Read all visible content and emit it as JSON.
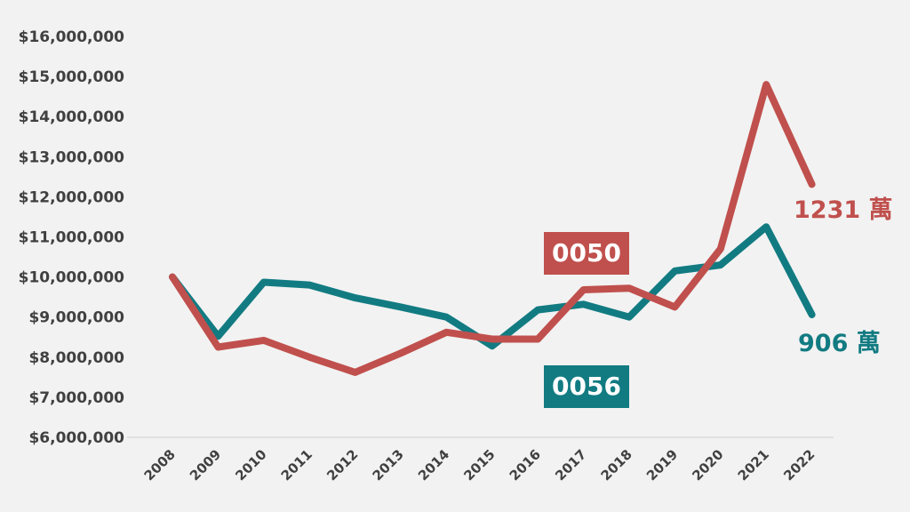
{
  "colors": {
    "0050": "#c0504d",
    "0056": "#127b82",
    "grid": "#d9d9d9",
    "text": "#404040"
  },
  "chart_data": {
    "type": "line",
    "x": [
      "2008",
      "2009",
      "2010",
      "2011",
      "2012",
      "2013",
      "2014",
      "2015",
      "2016",
      "2017",
      "2018",
      "2019",
      "2020",
      "2021",
      "2022"
    ],
    "ylim": [
      6000000,
      16000000
    ],
    "yticks": [
      {
        "value": 16000000,
        "label": "$16,000,000"
      },
      {
        "value": 15000000,
        "label": "$15,000,000"
      },
      {
        "value": 14000000,
        "label": "$14,000,000"
      },
      {
        "value": 13000000,
        "label": "$13,000,000"
      },
      {
        "value": 12000000,
        "label": "$12,000,000"
      },
      {
        "value": 11000000,
        "label": "$11,000,000"
      },
      {
        "value": 10000000,
        "label": "$10,000,000"
      },
      {
        "value": 9000000,
        "label": "$9,000,000"
      },
      {
        "value": 8000000,
        "label": "$8,000,000"
      },
      {
        "value": 7000000,
        "label": "$7,000,000"
      },
      {
        "value": 6000000,
        "label": "$6,000,000"
      }
    ],
    "series": [
      {
        "name": "0050",
        "color": "#c0504d",
        "values": [
          10000000,
          8250000,
          8420000,
          8000000,
          7620000,
          8100000,
          8620000,
          8450000,
          8450000,
          9680000,
          9720000,
          9250000,
          10700000,
          14800000,
          12310000
        ],
        "end_label": "1231 萬"
      },
      {
        "name": "0056",
        "color": "#127b82",
        "values": [
          10000000,
          8520000,
          9870000,
          9800000,
          9480000,
          9250000,
          9000000,
          8280000,
          9180000,
          9320000,
          9000000,
          10150000,
          10300000,
          11250000,
          9060000
        ],
        "end_label": "906 萬"
      }
    ],
    "grid": false,
    "legend": "inline labels"
  }
}
